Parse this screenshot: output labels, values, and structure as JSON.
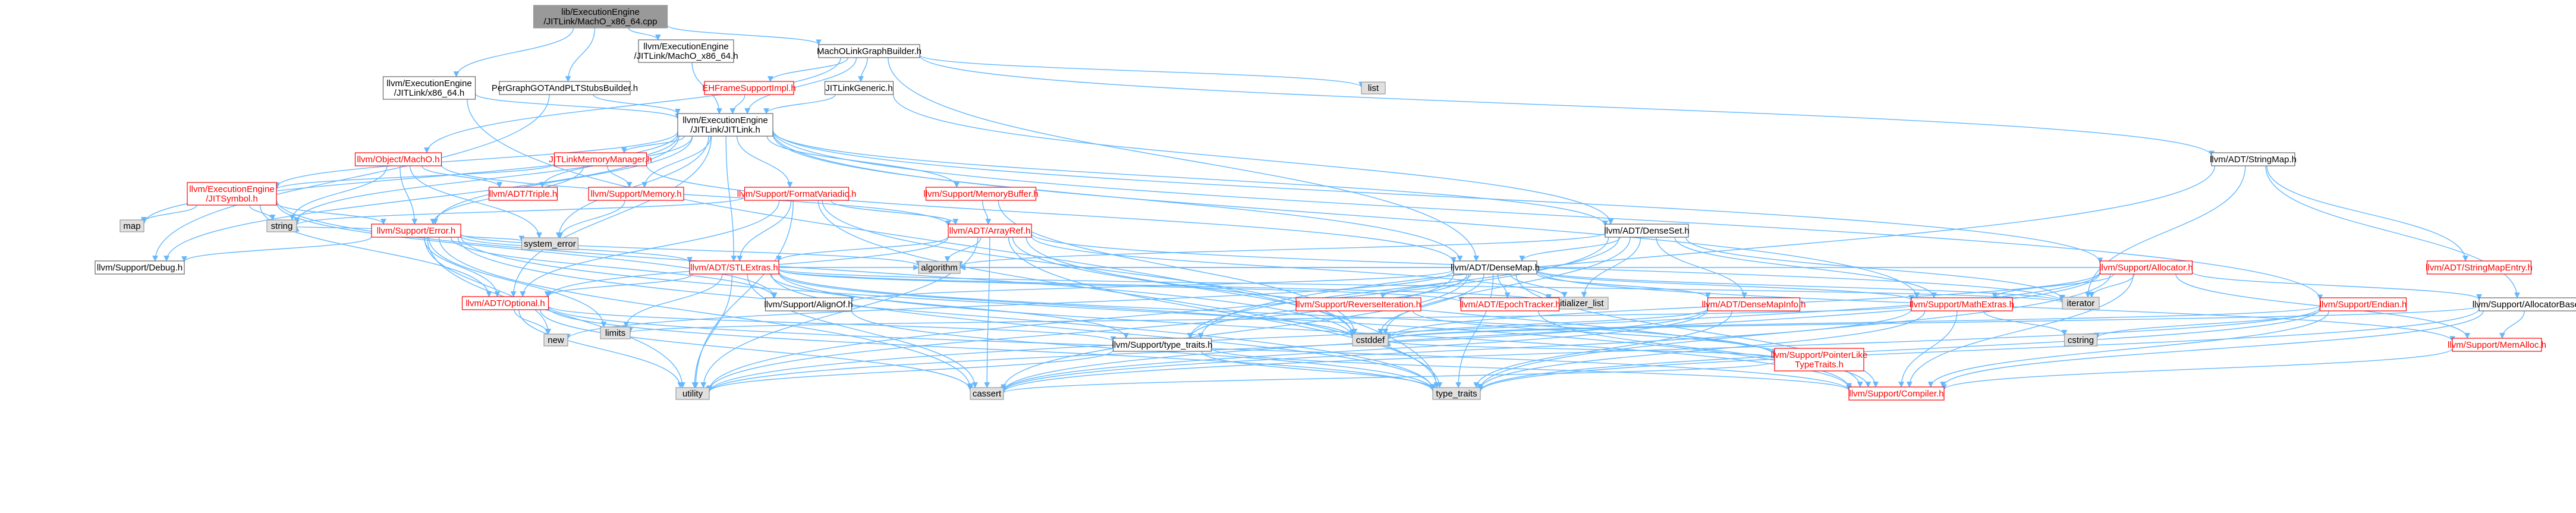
{
  "graph": {
    "colors": {
      "edge": "#63B8FF",
      "root_fill": "#999999",
      "root_text": "#000000",
      "doc_fill": "#ffffff",
      "doc_stroke": "#666666",
      "doc_text": "#000000",
      "partial_text": "#ff0000",
      "partial_stroke": "#ff0000",
      "sys_fill": "#e0e0e0",
      "sys_stroke": "#999999"
    },
    "nodes": [
      {
        "id": "root",
        "kind": "root",
        "lines": [
          "lib/ExecutionEngine",
          "/JITLink/MachO_x86_64.cpp"
        ]
      },
      {
        "id": "x64h",
        "kind": "doc",
        "lines": [
          "llvm/ExecutionEngine",
          "/JITLink/x86_64.h"
        ]
      },
      {
        "id": "pgot",
        "kind": "doc",
        "lines": [
          "PerGraphGOTAndPLTStubsBuilder.h"
        ]
      },
      {
        "id": "macho64h",
        "kind": "doc",
        "lines": [
          "llvm/ExecutionEngine",
          "/JITLink/MachO_x86_64.h"
        ]
      },
      {
        "id": "mlgb",
        "kind": "doc",
        "lines": [
          "MachOLinkGraphBuilder.h"
        ]
      },
      {
        "id": "ehf",
        "kind": "partial",
        "lines": [
          "EHFrameSupportImpl.h"
        ]
      },
      {
        "id": "jitgen",
        "kind": "doc",
        "lines": [
          "JITLinkGeneric.h"
        ]
      },
      {
        "id": "list",
        "kind": "sys",
        "lines": [
          "list"
        ]
      },
      {
        "id": "jitlink",
        "kind": "doc",
        "lines": [
          "llvm/ExecutionEngine",
          "/JITLink/JITLink.h"
        ]
      },
      {
        "id": "objmacho",
        "kind": "partial",
        "lines": [
          "llvm/Object/MachO.h"
        ]
      },
      {
        "id": "jitmm",
        "kind": "partial",
        "lines": [
          "JITLinkMemoryManager.h"
        ]
      },
      {
        "id": "stringmap",
        "kind": "doc",
        "lines": [
          "llvm/ADT/StringMap.h"
        ]
      },
      {
        "id": "jitsym",
        "kind": "partial",
        "lines": [
          "llvm/ExecutionEngine",
          "/JITSymbol.h"
        ]
      },
      {
        "id": "triple",
        "kind": "partial",
        "lines": [
          "llvm/ADT/Triple.h"
        ]
      },
      {
        "id": "memory",
        "kind": "partial",
        "lines": [
          "llvm/Support/Memory.h"
        ]
      },
      {
        "id": "fmtv",
        "kind": "partial",
        "lines": [
          "llvm/Support/FormatVariadic.h"
        ]
      },
      {
        "id": "membuf",
        "kind": "partial",
        "lines": [
          "llvm/Support/MemoryBuffer.h"
        ]
      },
      {
        "id": "map",
        "kind": "sys",
        "lines": [
          "map"
        ]
      },
      {
        "id": "serror",
        "kind": "partial",
        "lines": [
          "llvm/Support/Error.h"
        ]
      },
      {
        "id": "string",
        "kind": "sys",
        "lines": [
          "string"
        ]
      },
      {
        "id": "syserr",
        "kind": "sys",
        "lines": [
          "system_error"
        ]
      },
      {
        "id": "arrayref",
        "kind": "partial",
        "lines": [
          "llvm/ADT/ArrayRef.h"
        ]
      },
      {
        "id": "denseset",
        "kind": "doc",
        "lines": [
          "llvm/ADT/DenseSet.h"
        ]
      },
      {
        "id": "densemap",
        "kind": "doc",
        "lines": [
          "llvm/ADT/DenseMap.h"
        ]
      },
      {
        "id": "allocator",
        "kind": "partial",
        "lines": [
          "llvm/Support/Allocator.h"
        ]
      },
      {
        "id": "sdebug",
        "kind": "doc",
        "lines": [
          "llvm/Support/Debug.h"
        ]
      },
      {
        "id": "stlextras",
        "kind": "partial",
        "lines": [
          "llvm/ADT/STLExtras.h"
        ]
      },
      {
        "id": "algorithm",
        "kind": "sys",
        "lines": [
          "algorithm"
        ]
      },
      {
        "id": "initlist",
        "kind": "sys",
        "lines": [
          "initializer_list"
        ]
      },
      {
        "id": "iterator",
        "kind": "sys",
        "lines": [
          "iterator"
        ]
      },
      {
        "id": "optional",
        "kind": "partial",
        "lines": [
          "llvm/ADT/Optional.h"
        ]
      },
      {
        "id": "alignof",
        "kind": "doc",
        "lines": [
          "llvm/Support/AlignOf.h"
        ]
      },
      {
        "id": "revit",
        "kind": "partial",
        "lines": [
          "llvm/Support/ReverseIteration.h"
        ]
      },
      {
        "id": "epoch",
        "kind": "partial",
        "lines": [
          "llvm/ADT/EpochTracker.h"
        ]
      },
      {
        "id": "dminfo",
        "kind": "partial",
        "lines": [
          "llvm/ADT/DenseMapInfo.h"
        ]
      },
      {
        "id": "mathext",
        "kind": "partial",
        "lines": [
          "llvm/Support/MathExtras.h"
        ]
      },
      {
        "id": "endian",
        "kind": "partial",
        "lines": [
          "llvm/Support/Endian.h"
        ]
      },
      {
        "id": "allocbase",
        "kind": "doc",
        "lines": [
          "llvm/Support/AllocatorBase.h"
        ]
      },
      {
        "id": "smentry",
        "kind": "partial",
        "lines": [
          "llvm/ADT/StringMapEntry.h"
        ]
      },
      {
        "id": "new",
        "kind": "sys",
        "lines": [
          "new"
        ]
      },
      {
        "id": "limits",
        "kind": "sys",
        "lines": [
          "limits"
        ]
      },
      {
        "id": "cstddef",
        "kind": "sys",
        "lines": [
          "cstddef"
        ]
      },
      {
        "id": "typetraitsh",
        "kind": "doc",
        "lines": [
          "llvm/Support/type_traits.h"
        ]
      },
      {
        "id": "ptrlike",
        "kind": "partial",
        "lines": [
          "llvm/Support/PointerLike",
          "TypeTraits.h"
        ]
      },
      {
        "id": "cstring",
        "kind": "sys",
        "lines": [
          "cstring"
        ]
      },
      {
        "id": "memalloc",
        "kind": "partial",
        "lines": [
          "llvm/Support/MemAlloc.h"
        ]
      },
      {
        "id": "utility",
        "kind": "sys",
        "lines": [
          "utility"
        ]
      },
      {
        "id": "cassert",
        "kind": "sys",
        "lines": [
          "cassert"
        ]
      },
      {
        "id": "typetraits",
        "kind": "sys",
        "lines": [
          "type_traits"
        ]
      },
      {
        "id": "compiler",
        "kind": "partial",
        "lines": [
          "llvm/Support/Compiler.h"
        ]
      }
    ],
    "edges": [
      [
        "root",
        "x64h"
      ],
      [
        "root",
        "pgot"
      ],
      [
        "root",
        "macho64h"
      ],
      [
        "root",
        "mlgb"
      ],
      [
        "x64h",
        "jitlink"
      ],
      [
        "x64h",
        "typetraits"
      ],
      [
        "pgot",
        "jitlink"
      ],
      [
        "pgot",
        "sdebug"
      ],
      [
        "macho64h",
        "jitlink"
      ],
      [
        "mlgb",
        "jitlink"
      ],
      [
        "mlgb",
        "objmacho"
      ],
      [
        "mlgb",
        "ehf"
      ],
      [
        "mlgb",
        "jitgen"
      ],
      [
        "mlgb",
        "list"
      ],
      [
        "mlgb",
        "densemap"
      ],
      [
        "mlgb",
        "stringmap"
      ],
      [
        "ehf",
        "jitlink"
      ],
      [
        "jitgen",
        "jitlink"
      ],
      [
        "jitgen",
        "denseset"
      ],
      [
        "jitlink",
        "jitsym"
      ],
      [
        "jitlink",
        "jitmm"
      ],
      [
        "jitlink",
        "fmtv"
      ],
      [
        "jitlink",
        "membuf"
      ],
      [
        "jitlink",
        "triple"
      ],
      [
        "jitlink",
        "memory"
      ],
      [
        "jitlink",
        "serror"
      ],
      [
        "jitlink",
        "map"
      ],
      [
        "jitlink",
        "string"
      ],
      [
        "jitlink",
        "densemap"
      ],
      [
        "jitlink",
        "denseset"
      ],
      [
        "jitlink",
        "stlextras"
      ],
      [
        "jitlink",
        "allocator"
      ],
      [
        "jitlink",
        "endian"
      ],
      [
        "jitlink",
        "mathext"
      ],
      [
        "jitlink",
        "optional"
      ],
      [
        "jitlink",
        "syserr"
      ],
      [
        "jitlink",
        "sdebug"
      ],
      [
        "objmacho",
        "triple"
      ],
      [
        "objmacho",
        "arrayref"
      ],
      [
        "objmacho",
        "serror"
      ],
      [
        "objmacho",
        "string"
      ],
      [
        "objmacho",
        "syserr"
      ],
      [
        "jitmm",
        "jitsym"
      ],
      [
        "jitmm",
        "memory"
      ],
      [
        "jitmm",
        "serror"
      ],
      [
        "jitmm",
        "densemap"
      ],
      [
        "stringmap",
        "iterator"
      ],
      [
        "stringmap",
        "allocbase"
      ],
      [
        "stringmap",
        "smentry"
      ],
      [
        "stringmap",
        "typetraitsh"
      ],
      [
        "jitsym",
        "serror"
      ],
      [
        "jitsym",
        "map"
      ],
      [
        "jitsym",
        "string"
      ],
      [
        "jitsym",
        "optional"
      ],
      [
        "jitsym",
        "cstddef"
      ],
      [
        "jitsym",
        "alignof"
      ],
      [
        "memory",
        "syserr"
      ],
      [
        "fmtv",
        "arrayref"
      ],
      [
        "fmtv",
        "stlextras"
      ],
      [
        "fmtv",
        "optional"
      ],
      [
        "fmtv",
        "string"
      ],
      [
        "fmtv",
        "utility"
      ],
      [
        "fmtv",
        "typetraits"
      ],
      [
        "fmtv",
        "cstddef"
      ],
      [
        "membuf",
        "arrayref"
      ],
      [
        "membuf",
        "cstddef"
      ],
      [
        "serror",
        "stlextras"
      ],
      [
        "serror",
        "algorithm"
      ],
      [
        "serror",
        "cassert"
      ],
      [
        "serror",
        "new"
      ],
      [
        "serror",
        "string"
      ],
      [
        "serror",
        "syserr"
      ],
      [
        "serror",
        "typetraits"
      ],
      [
        "serror",
        "utility"
      ],
      [
        "serror",
        "alignof"
      ],
      [
        "serror",
        "compiler"
      ],
      [
        "serror",
        "optional"
      ],
      [
        "serror",
        "sdebug"
      ],
      [
        "serror",
        "limits"
      ],
      [
        "arrayref",
        "stlextras"
      ],
      [
        "arrayref",
        "algorithm"
      ],
      [
        "arrayref",
        "cassert"
      ],
      [
        "arrayref",
        "iterator"
      ],
      [
        "arrayref",
        "optional"
      ],
      [
        "arrayref",
        "compiler"
      ],
      [
        "arrayref",
        "cstddef"
      ],
      [
        "arrayref",
        "initlist"
      ],
      [
        "arrayref",
        "typetraits"
      ],
      [
        "arrayref",
        "utility"
      ],
      [
        "denseset",
        "densemap"
      ],
      [
        "denseset",
        "dminfo"
      ],
      [
        "denseset",
        "mathext"
      ],
      [
        "denseset",
        "typetraitsh"
      ],
      [
        "denseset",
        "algorithm"
      ],
      [
        "denseset",
        "cstddef"
      ],
      [
        "denseset",
        "initlist"
      ],
      [
        "denseset",
        "iterator"
      ],
      [
        "denseset",
        "utility"
      ],
      [
        "densemap",
        "dminfo"
      ],
      [
        "densemap",
        "epoch"
      ],
      [
        "densemap",
        "alignof"
      ],
      [
        "densemap",
        "compiler"
      ],
      [
        "densemap",
        "mathext"
      ],
      [
        "densemap",
        "memalloc"
      ],
      [
        "densemap",
        "revit"
      ],
      [
        "densemap",
        "typetraitsh"
      ],
      [
        "densemap",
        "algorithm"
      ],
      [
        "densemap",
        "cassert"
      ],
      [
        "densemap",
        "cstddef"
      ],
      [
        "densemap",
        "initlist"
      ],
      [
        "densemap",
        "iterator"
      ],
      [
        "densemap",
        "new"
      ],
      [
        "densemap",
        "typetraits"
      ],
      [
        "densemap",
        "utility"
      ],
      [
        "allocator",
        "allocbase"
      ],
      [
        "allocator",
        "compiler"
      ],
      [
        "allocator",
        "mathext"
      ],
      [
        "allocator",
        "algorithm"
      ],
      [
        "allocator",
        "cassert"
      ],
      [
        "allocator",
        "cstddef"
      ],
      [
        "allocator",
        "iterator"
      ],
      [
        "allocator",
        "typetraits"
      ],
      [
        "allocator",
        "utility"
      ],
      [
        "allocator",
        "memalloc"
      ],
      [
        "stlextras",
        "optional"
      ],
      [
        "stlextras",
        "algorithm"
      ],
      [
        "stlextras",
        "cassert"
      ],
      [
        "stlextras",
        "cstddef"
      ],
      [
        "stlextras",
        "initlist"
      ],
      [
        "stlextras",
        "iterator"
      ],
      [
        "stlextras",
        "limits"
      ],
      [
        "stlextras",
        "typetraits"
      ],
      [
        "stlextras",
        "utility"
      ],
      [
        "stlextras",
        "typetraitsh"
      ],
      [
        "stlextras",
        "epoch"
      ],
      [
        "stlextras",
        "compiler"
      ],
      [
        "stlextras",
        "ptrlike"
      ],
      [
        "optional",
        "cassert"
      ],
      [
        "optional",
        "new"
      ],
      [
        "optional",
        "utility"
      ],
      [
        "optional",
        "typetraitsh"
      ],
      [
        "optional",
        "compiler"
      ],
      [
        "optional",
        "typetraits"
      ],
      [
        "alignof",
        "typetraits"
      ],
      [
        "revit",
        "ptrlike"
      ],
      [
        "epoch",
        "compiler"
      ],
      [
        "dminfo",
        "cassert"
      ],
      [
        "dminfo",
        "cstddef"
      ],
      [
        "dminfo",
        "typetraits"
      ],
      [
        "dminfo",
        "utility"
      ],
      [
        "mathext",
        "compiler"
      ],
      [
        "mathext",
        "cassert"
      ],
      [
        "mathext",
        "cstring"
      ],
      [
        "mathext",
        "limits"
      ],
      [
        "mathext",
        "typetraits"
      ],
      [
        "endian",
        "compiler"
      ],
      [
        "endian",
        "cstddef"
      ],
      [
        "endian",
        "cstring"
      ],
      [
        "endian",
        "typetraits"
      ],
      [
        "endian",
        "cassert"
      ],
      [
        "allocbase",
        "compiler"
      ],
      [
        "allocbase",
        "memalloc"
      ],
      [
        "allocbase",
        "cstddef"
      ],
      [
        "allocbase",
        "typetraits"
      ],
      [
        "typetraitsh",
        "compiler"
      ],
      [
        "typetraitsh",
        "typetraits"
      ],
      [
        "typetraitsh",
        "utility"
      ],
      [
        "ptrlike",
        "cassert"
      ],
      [
        "ptrlike",
        "cstddef"
      ],
      [
        "memalloc",
        "compiler"
      ]
    ]
  }
}
